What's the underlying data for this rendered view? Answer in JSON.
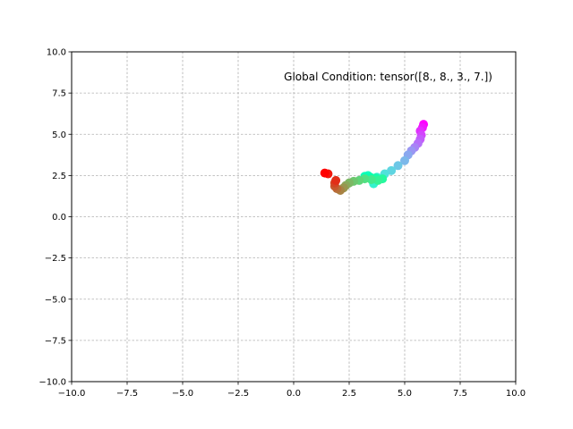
{
  "chart_data": {
    "type": "scatter",
    "annotation": "Global Condition: tensor([8., 8., 3., 7.])",
    "xlim": [
      -10,
      10
    ],
    "ylim": [
      -10,
      10
    ],
    "x_ticks": [
      -10,
      -7.5,
      -5,
      -2.5,
      0,
      2.5,
      5,
      7.5,
      10
    ],
    "y_ticks": [
      -10,
      -7.5,
      -5,
      -2.5,
      0,
      2.5,
      5,
      7.5,
      10
    ],
    "x_tick_labels": [
      "−10.0",
      "−7.5",
      "−5.0",
      "−2.5",
      "0.0",
      "2.5",
      "5.0",
      "7.5",
      "10.0"
    ],
    "y_tick_labels": [
      "−10.0",
      "−7.5",
      "−5.0",
      "−2.5",
      "0.0",
      "2.5",
      "5.0",
      "7.5",
      "10.0"
    ],
    "grid": true,
    "colormap": "rainbow",
    "colormap_direction": "first point violet, last point red",
    "points": [
      {
        "x": 5.85,
        "y": 5.6
      },
      {
        "x": 5.8,
        "y": 5.4
      },
      {
        "x": 5.7,
        "y": 5.2
      },
      {
        "x": 5.75,
        "y": 4.95
      },
      {
        "x": 5.7,
        "y": 4.7
      },
      {
        "x": 5.6,
        "y": 4.45
      },
      {
        "x": 5.45,
        "y": 4.2
      },
      {
        "x": 5.3,
        "y": 4.0
      },
      {
        "x": 5.15,
        "y": 3.75
      },
      {
        "x": 5.0,
        "y": 3.4
      },
      {
        "x": 4.7,
        "y": 3.1
      },
      {
        "x": 4.4,
        "y": 2.8
      },
      {
        "x": 4.1,
        "y": 2.6
      },
      {
        "x": 3.75,
        "y": 2.4
      },
      {
        "x": 3.6,
        "y": 2.0
      },
      {
        "x": 3.5,
        "y": 2.3
      },
      {
        "x": 3.35,
        "y": 2.5
      },
      {
        "x": 3.2,
        "y": 2.45
      },
      {
        "x": 3.45,
        "y": 2.4
      },
      {
        "x": 3.7,
        "y": 2.35
      },
      {
        "x": 4.0,
        "y": 2.3
      },
      {
        "x": 3.8,
        "y": 2.2
      },
      {
        "x": 3.5,
        "y": 2.25
      },
      {
        "x": 3.2,
        "y": 2.3
      },
      {
        "x": 2.95,
        "y": 2.2
      },
      {
        "x": 2.7,
        "y": 2.15
      },
      {
        "x": 2.5,
        "y": 2.05
      },
      {
        "x": 2.35,
        "y": 1.9
      },
      {
        "x": 2.25,
        "y": 1.75
      },
      {
        "x": 2.1,
        "y": 1.6
      },
      {
        "x": 1.95,
        "y": 1.7
      },
      {
        "x": 1.85,
        "y": 1.85
      },
      {
        "x": 1.85,
        "y": 2.05
      },
      {
        "x": 1.9,
        "y": 2.2
      },
      {
        "x": 1.55,
        "y": 2.6
      },
      {
        "x": 1.4,
        "y": 2.65
      }
    ]
  }
}
